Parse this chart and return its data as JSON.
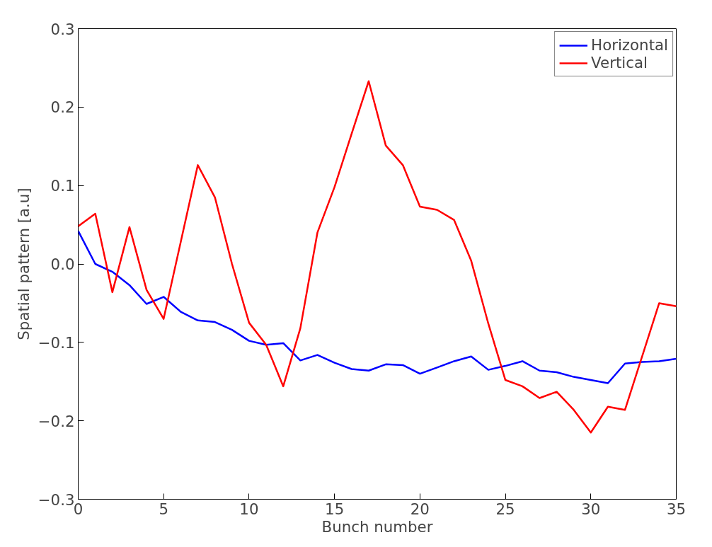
{
  "chart_data": {
    "type": "line",
    "xlabel": "Bunch number",
    "ylabel": "Spatial pattern [a.u]",
    "x": [
      0,
      1,
      2,
      3,
      4,
      5,
      6,
      7,
      8,
      9,
      10,
      11,
      12,
      13,
      14,
      15,
      16,
      17,
      18,
      19,
      20,
      21,
      22,
      23,
      24,
      25,
      26,
      27,
      28,
      29,
      30,
      31,
      32,
      33,
      34,
      35
    ],
    "series": [
      {
        "name": "Horizontal",
        "color": "#0000ff",
        "values": [
          0.042,
          0.0,
          -0.01,
          -0.027,
          -0.051,
          -0.042,
          -0.061,
          -0.072,
          -0.074,
          -0.084,
          -0.098,
          -0.103,
          -0.101,
          -0.123,
          -0.116,
          -0.126,
          -0.134,
          -0.136,
          -0.128,
          -0.129,
          -0.14,
          -0.132,
          -0.124,
          -0.118,
          -0.135,
          -0.13,
          -0.124,
          -0.136,
          -0.138,
          -0.144,
          -0.148,
          -0.152,
          -0.127,
          -0.125,
          -0.124,
          -0.121
        ]
      },
      {
        "name": "Vertical",
        "color": "#ff0000",
        "values": [
          0.048,
          0.064,
          -0.036,
          0.047,
          -0.033,
          -0.07,
          0.028,
          0.126,
          0.085,
          0.0,
          -0.075,
          -0.103,
          -0.156,
          -0.082,
          0.04,
          0.098,
          0.166,
          0.233,
          0.151,
          0.126,
          0.073,
          0.069,
          0.056,
          0.004,
          -0.076,
          -0.148,
          -0.156,
          -0.171,
          -0.163,
          -0.186,
          -0.215,
          -0.182,
          -0.186,
          -0.118,
          -0.05,
          -0.054
        ]
      }
    ],
    "xlim": [
      0,
      35
    ],
    "xticks": [
      0,
      5,
      10,
      15,
      20,
      25,
      30,
      35
    ],
    "ylim": [
      -0.3,
      0.3
    ],
    "yticks": [
      {
        "value": -0.3,
        "label": "−0.3"
      },
      {
        "value": -0.2,
        "label": "−0.2"
      },
      {
        "value": -0.1,
        "label": "−0.1"
      },
      {
        "value": 0,
        "label": "0.0"
      },
      {
        "value": 0.1,
        "label": "0.1"
      },
      {
        "value": 0.2,
        "label": "0.2"
      },
      {
        "value": 0.3,
        "label": "0.3"
      }
    ],
    "grid": false,
    "legend": "top right",
    "line_style": "solid",
    "marker": "none"
  }
}
